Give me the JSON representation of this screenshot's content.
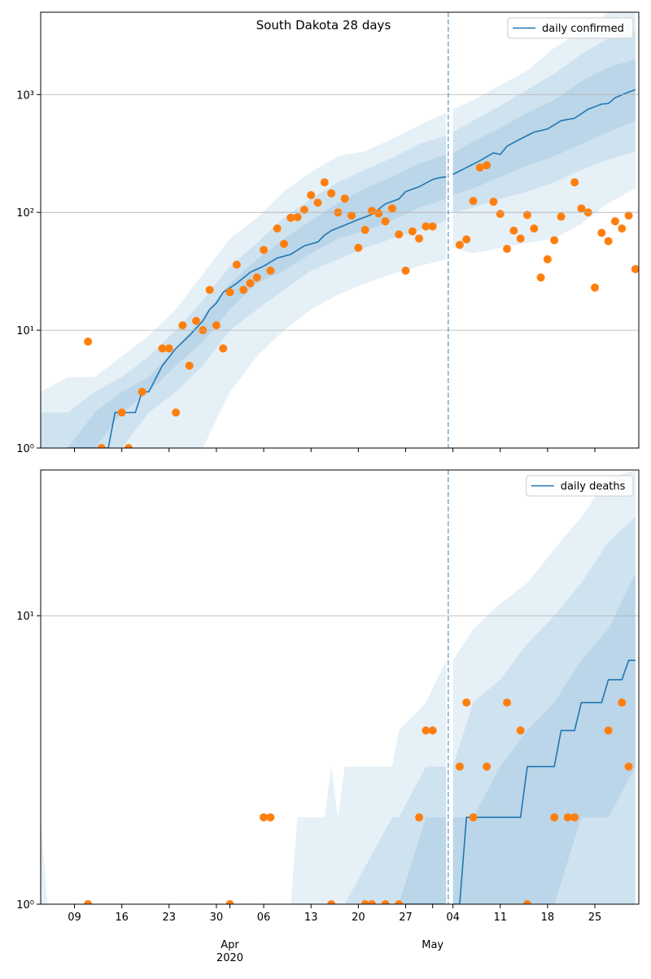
{
  "chart_data": [
    {
      "type": "line",
      "title": "South Dakota 28 days",
      "log_y": true,
      "grid": true,
      "legend": "upper right",
      "xlim": [
        3,
        91.5
      ],
      "ylim": [
        1,
        5000
      ],
      "xticks": [
        8,
        15,
        22,
        29,
        36,
        43,
        50,
        57,
        64,
        71,
        78,
        85
      ],
      "yticks": [
        {
          "value": 1,
          "label": "10⁰"
        },
        {
          "value": 10,
          "label": "10¹"
        },
        {
          "value": 100,
          "label": "10²"
        },
        {
          "value": 1000,
          "label": "10³"
        }
      ],
      "vline_x": 63.3,
      "series": [
        {
          "name": "daily confirmed",
          "color": "#1f77b4",
          "x": [
            7,
            13,
            14,
            17,
            18,
            19,
            21,
            23,
            25,
            27,
            28,
            29,
            30,
            32,
            34,
            36,
            38,
            40,
            42,
            44,
            45,
            46,
            48,
            50,
            52,
            54,
            56,
            57,
            59,
            61,
            62,
            63,
            63.5,
            64,
            66,
            68,
            70,
            71,
            72,
            74,
            76,
            78,
            80,
            82,
            84,
            86,
            87,
            88,
            90,
            91
          ],
          "values": [
            1,
            1,
            2,
            2,
            3,
            3,
            5,
            7,
            9,
            12,
            15,
            17,
            21,
            25,
            31,
            35,
            41,
            44,
            52,
            56,
            64,
            70,
            78,
            87,
            96,
            118,
            130,
            150,
            165,
            190,
            197,
            200,
            null,
            210,
            240,
            275,
            320,
            310,
            365,
            420,
            480,
            510,
            600,
            630,
            750,
            830,
            840,
            940,
            1050,
            1100
          ]
        }
      ],
      "observed": {
        "color": "#ff7f0e",
        "x": [
          10,
          12,
          15,
          16,
          18,
          21,
          22,
          23,
          24,
          25,
          26,
          27,
          28,
          29,
          30,
          31,
          32,
          33,
          34,
          35,
          36,
          37,
          38,
          39,
          40,
          41,
          42,
          43,
          44,
          45,
          46,
          47,
          48,
          49,
          50,
          51,
          52,
          53,
          54,
          55,
          56,
          57,
          58,
          59,
          60,
          61,
          65,
          66,
          67,
          68,
          69,
          70,
          71,
          72,
          73,
          74,
          75,
          76,
          77,
          78,
          79,
          80,
          82,
          83,
          84,
          85,
          86,
          87,
          88,
          89,
          90,
          91
        ],
        "values": [
          8,
          1,
          2,
          1,
          3,
          7,
          7,
          2,
          11,
          5,
          12,
          10,
          22,
          11,
          7,
          21,
          36,
          22,
          25,
          28,
          48,
          32,
          73,
          54,
          90,
          91,
          105,
          140,
          121,
          180,
          145,
          100,
          131,
          94,
          50,
          71,
          103,
          98,
          84,
          108,
          65,
          32,
          69,
          60,
          76,
          76,
          53,
          59,
          125,
          240,
          251,
          123,
          97,
          49,
          70,
          60,
          95,
          73,
          28,
          40,
          58,
          92,
          180,
          108,
          100,
          23,
          67,
          57,
          84,
          73,
          94,
          33
        ]
      },
      "bands": {
        "color": "#1f77b4",
        "x": [
          3,
          7,
          11,
          15,
          19,
          23,
          27,
          31,
          35,
          39,
          43,
          47,
          51,
          55,
          59,
          63,
          63.5,
          64,
          67,
          71,
          75,
          79,
          83,
          87,
          91
        ],
        "ranges": [
          {
            "lower": [
              1,
              1,
              1,
              1,
              1,
              1,
              1,
              3,
              6,
              10,
              15,
              20,
              25,
              30,
              35,
              40,
              null,
              50,
              45,
              50,
              55,
              60,
              80,
              120,
              160
            ],
            "upper": [
              3,
              4,
              4,
              6,
              9,
              15,
              30,
              60,
              90,
              150,
              220,
              300,
              330,
              420,
              550,
              700,
              null,
              750,
              900,
              1200,
              1600,
              2500,
              3500,
              5000,
              5000
            ]
          },
          {
            "lower": [
              1,
              1,
              1,
              1,
              2,
              3,
              5,
              10,
              15,
              22,
              32,
              40,
              50,
              60,
              70,
              85,
              null,
              100,
              110,
              130,
              150,
              180,
              230,
              280,
              330
            ],
            "upper": [
              2,
              2,
              3,
              4,
              6,
              10,
              18,
              35,
              55,
              90,
              130,
              180,
              230,
              290,
              380,
              450,
              null,
              480,
              600,
              800,
              1100,
              1500,
              2200,
              3000,
              3500
            ]
          },
          {
            "lower": [
              1,
              1,
              1,
              2,
              3,
              5,
              8,
              15,
              25,
              32,
              45,
              60,
              70,
              85,
              110,
              130,
              null,
              140,
              160,
              200,
              250,
              300,
              380,
              480,
              600
            ],
            "upper": [
              1,
              1,
              2,
              3,
              4,
              7,
              13,
              25,
              40,
              60,
              85,
              120,
              160,
              200,
              260,
              310,
              null,
              320,
              400,
              520,
              700,
              900,
              1300,
              1700,
              2000
            ]
          }
        ]
      }
    },
    {
      "type": "line",
      "log_y": true,
      "grid": true,
      "legend": "upper right",
      "xlim": [
        3,
        91.5
      ],
      "ylim": [
        1,
        32
      ],
      "xticks": [
        {
          "value": 8,
          "label": "09"
        },
        {
          "value": 15,
          "label": "16"
        },
        {
          "value": 22,
          "label": "23"
        },
        {
          "value": 29,
          "label": "30"
        },
        {
          "value": 36,
          "label": "06"
        },
        {
          "value": 43,
          "label": "13"
        },
        {
          "value": 50,
          "label": "20"
        },
        {
          "value": 57,
          "label": "27"
        },
        {
          "value": 64,
          "label": "04"
        },
        {
          "value": 71,
          "label": "11"
        },
        {
          "value": 78,
          "label": "18"
        },
        {
          "value": 85,
          "label": "25"
        }
      ],
      "month_ticks": [
        {
          "value": 31,
          "label": "Apr",
          "year": "2020"
        },
        {
          "value": 61,
          "label": "May"
        }
      ],
      "yticks": [
        {
          "value": 1,
          "label": "10⁰"
        },
        {
          "value": 10,
          "label": "10¹"
        }
      ],
      "vline_x": 63.3,
      "series": [
        {
          "name": "daily deaths",
          "color": "#1f77b4",
          "x": [
            57,
            63,
            63.5,
            64,
            65,
            66,
            74,
            75,
            79,
            80,
            82,
            83,
            86,
            87,
            89,
            90,
            91
          ],
          "values": [
            1,
            1,
            null,
            1,
            1,
            2,
            2,
            3,
            3,
            4,
            4,
            5,
            5,
            6,
            6,
            7,
            7
          ]
        }
      ],
      "observed": {
        "color": "#ff7f0e",
        "x": [
          10,
          31,
          36,
          37,
          46,
          51,
          52,
          54,
          56,
          59,
          60,
          61,
          65,
          66,
          67,
          69,
          72,
          74,
          75,
          79,
          81,
          82,
          87,
          89,
          90
        ],
        "values": [
          1,
          1,
          2,
          2,
          1,
          1,
          1,
          1,
          1,
          2,
          4,
          4,
          3,
          5,
          2,
          3,
          5,
          4,
          1,
          2,
          2,
          2,
          4,
          5,
          3
        ]
      },
      "bands": {
        "color": "#1f77b4",
        "x": [
          3,
          4,
          40,
          41,
          45,
          46,
          47,
          48,
          55,
          56,
          60,
          63,
          63.5,
          64,
          67,
          71,
          75,
          79,
          83,
          87,
          91
        ],
        "ranges": [
          {
            "lower": [
              1,
              1,
              1,
              1,
              1,
              1,
              1,
              1,
              1,
              1,
              1,
              1,
              null,
              1,
              1,
              1,
              1,
              1,
              1,
              1,
              1
            ],
            "upper": [
              2,
              1,
              1,
              2,
              2,
              3,
              2,
              3,
              3,
              4,
              5,
              7,
              null,
              7,
              9,
              11,
              13,
              17,
              22,
              30,
              32
            ]
          },
          {
            "lower": [
              1,
              1,
              1,
              1,
              1,
              1,
              1,
              1,
              1,
              1,
              1,
              1,
              null,
              1,
              1,
              1,
              1,
              1,
              1,
              1,
              1
            ],
            "upper": [
              1,
              1,
              1,
              1,
              1,
              1,
              1,
              1,
              2,
              2,
              3,
              3,
              null,
              3,
              5,
              6,
              8,
              10,
              13,
              18,
              22
            ]
          },
          {
            "lower": [
              1,
              1,
              1,
              1,
              1,
              1,
              1,
              1,
              1,
              1,
              1,
              1,
              null,
              1,
              1,
              1,
              1,
              1,
              2,
              2,
              3
            ],
            "upper": [
              1,
              1,
              1,
              1,
              1,
              1,
              1,
              1,
              1,
              1,
              2,
              2,
              null,
              2,
              2,
              3,
              4,
              5,
              7,
              9,
              14
            ]
          }
        ]
      }
    }
  ]
}
